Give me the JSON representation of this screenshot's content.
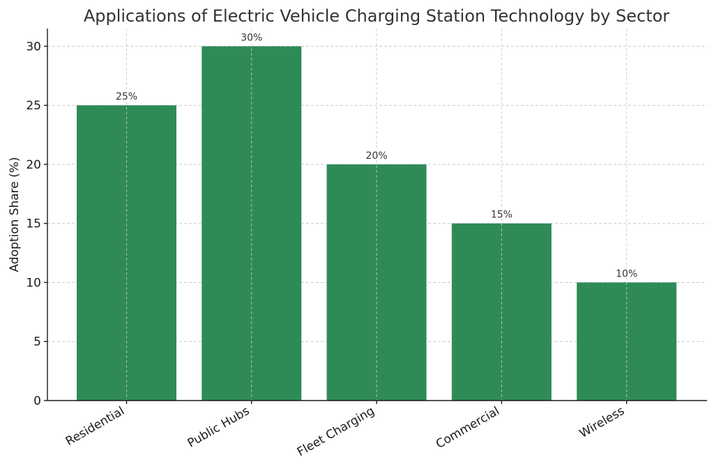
{
  "chart_data": {
    "type": "bar",
    "title": "Applications of Electric Vehicle Charging Station Technology by Sector",
    "xlabel": "",
    "ylabel": "Adoption Share (%)",
    "categories": [
      "Residential",
      "Public Hubs",
      "Fleet Charging",
      "Commercial",
      "Wireless"
    ],
    "values": [
      25,
      30,
      20,
      15,
      10
    ],
    "data_labels": [
      "25%",
      "30%",
      "20%",
      "15%",
      "10%"
    ],
    "ylim": [
      0,
      31.5
    ],
    "yticks": [
      0,
      5,
      10,
      15,
      20,
      25,
      30
    ],
    "grid": true,
    "bar_color": "#2e8b57",
    "legend": "none"
  }
}
